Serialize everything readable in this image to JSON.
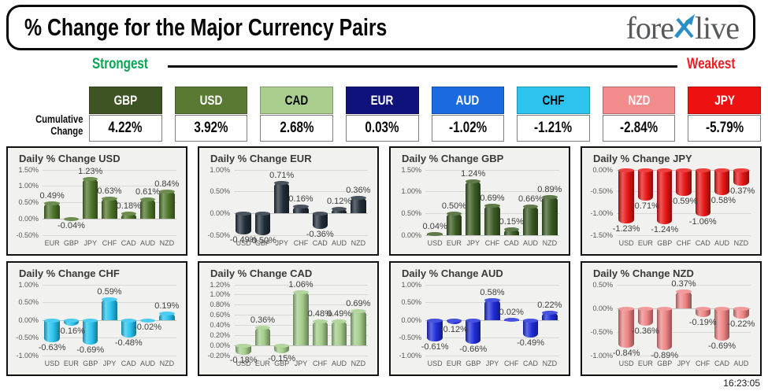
{
  "header": {
    "title": "% Change for the Major Currency Pairs",
    "logo": {
      "pre": "fore",
      "post": "live",
      "x_color": "#2b8fc7",
      "text_color": "#58595b"
    }
  },
  "scale": {
    "strongest": "Strongest",
    "weakest": "Weakest",
    "strongest_color": "#00a651",
    "weakest_color": "#ec1c24"
  },
  "cumulative": {
    "label_line1": "Cumulative",
    "label_line2": "Change",
    "badges": [
      {
        "code": "GBP",
        "value": "4.22%",
        "bg": "#3f5425",
        "text": "#ffffff"
      },
      {
        "code": "USD",
        "value": "3.92%",
        "bg": "#5a7a33",
        "text": "#ffffff"
      },
      {
        "code": "CAD",
        "value": "2.68%",
        "bg": "#a9ce8e",
        "text": "#000000"
      },
      {
        "code": "EUR",
        "value": "0.03%",
        "bg": "#10127c",
        "text": "#ffffff"
      },
      {
        "code": "AUD",
        "value": "-1.02%",
        "bg": "#1a6be0",
        "text": "#ffffff"
      },
      {
        "code": "CHF",
        "value": "-1.21%",
        "bg": "#2cc3ee",
        "text": "#000000"
      },
      {
        "code": "NZD",
        "value": "-2.84%",
        "bg": "#f28b8b",
        "text": "#ffffff"
      },
      {
        "code": "JPY",
        "value": "-5.79%",
        "bg": "#ee1111",
        "text": "#ffffff"
      }
    ]
  },
  "footer": {
    "timestamp": "16:23:05"
  },
  "chart_data": [
    {
      "type": "bar",
      "key": "usd",
      "title": "Daily % Change USD",
      "categories": [
        "EUR",
        "GBP",
        "JPY",
        "CHF",
        "CAD",
        "AUD",
        "NZD"
      ],
      "values": [
        0.49,
        -0.04,
        1.23,
        0.63,
        0.18,
        0.61,
        0.84
      ],
      "labels": [
        "0.49%",
        "-0.04%",
        "1.23%",
        "0.63%",
        "0.18%",
        "0.61%",
        "0.84%"
      ],
      "ticks": [
        1.5,
        1.0,
        0.5,
        0.0,
        -0.5
      ],
      "tick_labels": [
        "1.50%",
        "1.00%",
        "0.50%",
        "0.00%",
        "-0.50%"
      ],
      "ymin": -0.5,
      "ymax": 1.5,
      "bar_color": "#4e7529",
      "grid": true,
      "legend": "none"
    },
    {
      "type": "bar",
      "key": "eur",
      "title": "Daily % Change EUR",
      "categories": [
        "USD",
        "GBP",
        "JPY",
        "CHF",
        "CAD",
        "AUD",
        "NZD"
      ],
      "values": [
        -0.49,
        -0.5,
        0.71,
        0.16,
        -0.36,
        0.12,
        0.36
      ],
      "labels": [
        "-0.49%",
        "-0.50%",
        "0.71%",
        "0.16%",
        "-0.36%",
        "0.12%",
        "0.36%"
      ],
      "ticks": [
        1.0,
        0.5,
        0.0,
        -0.5
      ],
      "tick_labels": [
        "1.00%",
        "0.50%",
        "0.00%",
        "-0.50%"
      ],
      "ymin": -0.5,
      "ymax": 1.0,
      "bar_color": "#222e3a",
      "grid": true,
      "legend": "none"
    },
    {
      "type": "bar",
      "key": "gbp",
      "title": "Daily % Change GBP",
      "categories": [
        "USD",
        "EUR",
        "JPY",
        "CHF",
        "CAD",
        "AUD",
        "NZD"
      ],
      "values": [
        0.04,
        0.5,
        1.24,
        0.69,
        0.15,
        0.66,
        0.89
      ],
      "labels": [
        "0.04%",
        "0.50%",
        "1.24%",
        "0.69%",
        "0.15%",
        "0.66%",
        "0.89%"
      ],
      "ticks": [
        1.5,
        1.0,
        0.5,
        0.0
      ],
      "tick_labels": [
        "1.50%",
        "1.00%",
        "0.50%",
        "0.00%"
      ],
      "ymin": 0.0,
      "ymax": 1.5,
      "bar_color": "#3c5c24",
      "grid": true,
      "legend": "none"
    },
    {
      "type": "bar",
      "key": "jpy",
      "title": "Daily % Change JPY",
      "categories": [
        "USD",
        "EUR",
        "GBP",
        "CHF",
        "CAD",
        "AUD",
        "NZD"
      ],
      "values": [
        -1.23,
        -0.71,
        -1.24,
        -0.59,
        -1.06,
        -0.58,
        -0.37
      ],
      "labels": [
        "-1.23%",
        "-0.71%",
        "-1.24%",
        "-0.59%",
        "-1.06%",
        "-0.58%",
        "-0.37%"
      ],
      "ticks": [
        0.0,
        -0.5,
        -1.0,
        -1.5
      ],
      "tick_labels": [
        "0.00%",
        "-0.50%",
        "-1.00%",
        "-1.50%"
      ],
      "ymin": -1.5,
      "ymax": 0.0,
      "bar_color": "#e81414",
      "grid": true,
      "legend": "none"
    },
    {
      "type": "bar",
      "key": "chf",
      "title": "Daily % Change CHF",
      "categories": [
        "USD",
        "EUR",
        "GBP",
        "JPY",
        "CAD",
        "AUD",
        "NZD"
      ],
      "values": [
        -0.63,
        -0.16,
        -0.69,
        0.59,
        -0.48,
        -0.02,
        0.19
      ],
      "labels": [
        "-0.63%",
        "-0.16%",
        "-0.69%",
        "0.59%",
        "-0.48%",
        "-0.02%",
        "0.19%"
      ],
      "ticks": [
        1.0,
        0.5,
        0.0,
        -0.5,
        -1.0
      ],
      "tick_labels": [
        "1.00%",
        "0.50%",
        "0.00%",
        "-0.50%",
        "-1.00%"
      ],
      "ymin": -1.0,
      "ymax": 1.0,
      "bar_color": "#27c3ef",
      "grid": true,
      "legend": "none"
    },
    {
      "type": "bar",
      "key": "cad",
      "title": "Daily % Change CAD",
      "categories": [
        "USD",
        "EUR",
        "GBP",
        "JPY",
        "CHF",
        "AUD",
        "NZD"
      ],
      "values": [
        -0.18,
        0.36,
        -0.15,
        1.06,
        0.48,
        0.49,
        0.69
      ],
      "labels": [
        "-0.18%",
        "0.36%",
        "-0.15%",
        "1.06%",
        "0.48%",
        "0.49%",
        "0.69%"
      ],
      "ticks": [
        1.2,
        1.0,
        0.8,
        0.6,
        0.4,
        0.2,
        0.0,
        -0.2
      ],
      "tick_labels": [
        "1.20%",
        "1.00%",
        "0.80%",
        "0.60%",
        "0.40%",
        "0.20%",
        "0.00%",
        "-0.20%"
      ],
      "ymin": -0.2,
      "ymax": 1.2,
      "bar_color": "#a3cc89",
      "grid": true,
      "legend": "none"
    },
    {
      "type": "bar",
      "key": "aud",
      "title": "Daily % Change AUD",
      "categories": [
        "USD",
        "EUR",
        "GBP",
        "JPY",
        "CHF",
        "CAD",
        "NZD"
      ],
      "values": [
        -0.61,
        -0.12,
        -0.66,
        0.58,
        0.02,
        -0.49,
        0.22
      ],
      "labels": [
        "-0.61%",
        "-0.12%",
        "-0.66%",
        "0.58%",
        "0.02%",
        "-0.49%",
        "0.22%"
      ],
      "ticks": [
        1.0,
        0.5,
        0.0,
        -0.5,
        -1.0
      ],
      "tick_labels": [
        "1.00%",
        "0.50%",
        "0.00%",
        "-0.50%",
        "-1.00%"
      ],
      "ymin": -1.0,
      "ymax": 1.0,
      "bar_color": "#1e2cd8",
      "grid": true,
      "legend": "none"
    },
    {
      "type": "bar",
      "key": "nzd",
      "title": "Daily % Change NZD",
      "categories": [
        "USD",
        "EUR",
        "GBP",
        "JPY",
        "CHF",
        "CAD",
        "AUD"
      ],
      "values": [
        -0.84,
        -0.36,
        -0.89,
        0.37,
        -0.19,
        -0.69,
        -0.22
      ],
      "labels": [
        "-0.84%",
        "-0.36%",
        "-0.89%",
        "0.37%",
        "-0.19%",
        "-0.69%",
        "-0.22%"
      ],
      "ticks": [
        0.5,
        0.0,
        -0.5,
        -1.0
      ],
      "tick_labels": [
        "0.50%",
        "0.00%",
        "-0.50%",
        "-1.00%"
      ],
      "ymin": -1.0,
      "ymax": 0.5,
      "bar_color": "#ef8585",
      "grid": true,
      "legend": "none"
    }
  ]
}
